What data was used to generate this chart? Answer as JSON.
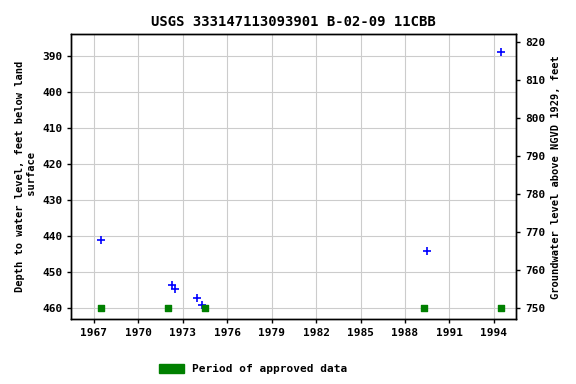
{
  "title": "USGS 333147113093901 B-02-09 11CBB",
  "xlabel_ticks": [
    1967,
    1970,
    1973,
    1976,
    1979,
    1982,
    1985,
    1988,
    1991,
    1994
  ],
  "xlim": [
    1965.5,
    1995.5
  ],
  "ylim_left_top": 384,
  "ylim_left_bottom": 463,
  "ylim_right_top": 822,
  "ylim_right_bottom": 747,
  "left_yticks": [
    390,
    400,
    410,
    420,
    430,
    440,
    450,
    460
  ],
  "right_yticks": [
    820,
    810,
    800,
    790,
    780,
    770,
    760,
    750
  ],
  "right_ytick_labels": [
    "820",
    "810",
    "800",
    "790",
    "780",
    "770",
    "760",
    "750"
  ],
  "ylabel_left": "Depth to water level, feet below land\n surface",
  "ylabel_right": "Groundwater level above NGVD 1929, feet",
  "blue_points_x": [
    1967.5,
    1972.3,
    1972.5,
    1974.0,
    1974.3,
    1989.5,
    1994.5
  ],
  "blue_points_y": [
    441,
    453.5,
    454.5,
    457.0,
    459.0,
    444,
    389
  ],
  "green_points_x": [
    1967.5,
    1972.0,
    1974.5,
    1989.3,
    1994.5
  ],
  "green_points_y": [
    460,
    460,
    460,
    460,
    460
  ],
  "legend_label": "Period of approved data",
  "legend_color": "#008000",
  "bg_color": "#ffffff",
  "grid_color": "#cccccc",
  "point_color_blue": "#0000ff",
  "point_color_green": "#008000"
}
